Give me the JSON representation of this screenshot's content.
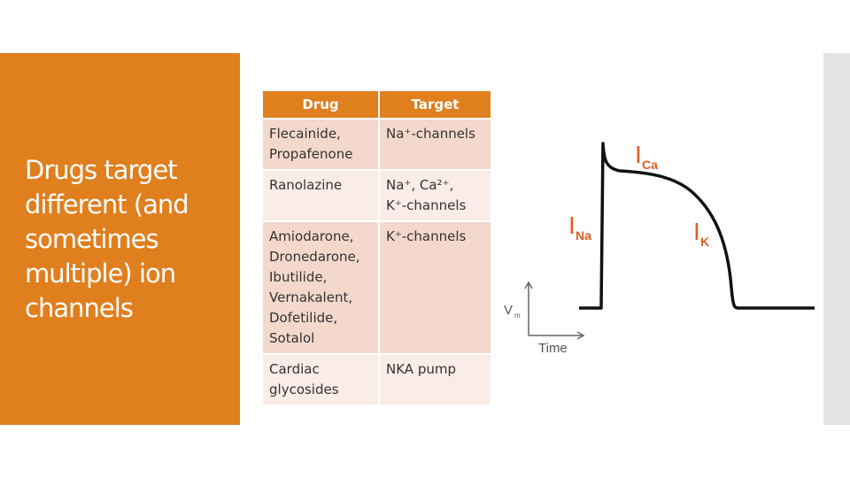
{
  "slide": {
    "title": "Drugs target different (and sometimes multiple) ion channels"
  },
  "table": {
    "headers": [
      "Drug",
      "Target"
    ],
    "rows": [
      {
        "drug_lines": [
          "Flecainide,",
          "Propafenone"
        ],
        "target_lines": [
          "Na⁺-channels"
        ]
      },
      {
        "drug_lines": [
          "Ranolazine"
        ],
        "target_lines": [
          "Na⁺, Ca²⁺,",
          "K⁺-channels"
        ]
      },
      {
        "drug_lines": [
          "Amiodarone,",
          "Dronedarone,",
          "Ibutilide,",
          "Vernakalent,",
          "Dofetilide,",
          "Sotalol"
        ],
        "target_lines": [
          "K⁺-channels"
        ]
      },
      {
        "drug_lines": [
          "Cardiac",
          "glycosides"
        ],
        "target_lines": [
          "NKA pump"
        ]
      }
    ]
  },
  "diagram": {
    "current_labels": [
      {
        "main": "I",
        "sub": "Na"
      },
      {
        "main": "I",
        "sub": "Ca"
      },
      {
        "main": "I",
        "sub": "K"
      }
    ],
    "y_axis_label": {
      "main": "V",
      "sub": "m"
    },
    "x_axis_label": "Time",
    "colors": {
      "trace": "#111111",
      "labels": "#e35c22",
      "axis": "#666666",
      "accent": "#e07f1e"
    }
  }
}
